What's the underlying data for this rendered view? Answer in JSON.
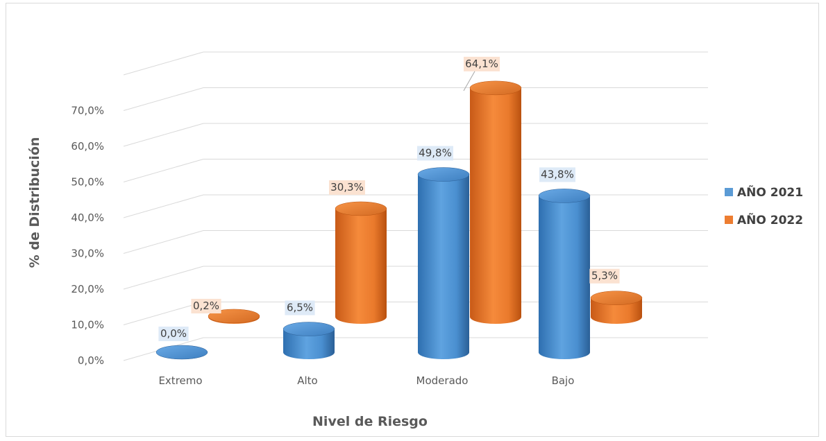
{
  "chart_data": {
    "type": "bar",
    "subtype": "3d-cylinder-clustered",
    "title": "",
    "xlabel": "Nivel de Riesgo",
    "ylabel": "% de Distribución",
    "categories": [
      "Extremo",
      "Alto",
      "Moderado",
      "Bajo"
    ],
    "ylim": [
      0,
      70
    ],
    "yticks": [
      "0,0%",
      "10,0%",
      "20,0%",
      "30,0%",
      "40,0%",
      "50,0%",
      "60,0%",
      "70,0%"
    ],
    "grid": true,
    "legend_position": "right",
    "series": [
      {
        "name": "AÑO 2021",
        "color": "#5b9bd5",
        "values": [
          0.0,
          6.5,
          49.8,
          43.8
        ],
        "labels": [
          "0,0%",
          "6,5%",
          "49,8%",
          "43,8%"
        ]
      },
      {
        "name": "AÑO 2022",
        "color": "#ed7d31",
        "values": [
          0.2,
          30.3,
          64.1,
          5.3
        ],
        "labels": [
          "0,2%",
          "30,3%",
          "64,1%",
          "5,3%"
        ]
      }
    ]
  }
}
